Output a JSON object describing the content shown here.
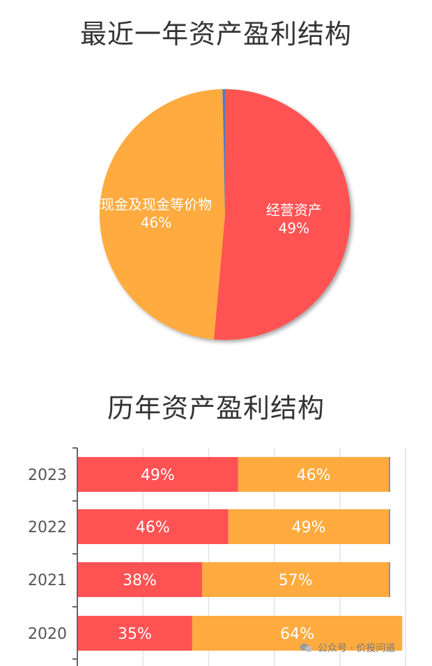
{
  "colors": {
    "operating": "#FF5253",
    "cash": "#FFAB40",
    "other": "#4A7BD0",
    "axis": "#666666",
    "grid": "#E0E0F0"
  },
  "titles": {
    "pie": "最近一年资产盈利结构",
    "bar": "历年资产盈利结构"
  },
  "chart_data": [
    {
      "type": "pie",
      "slices": [
        {
          "name": "经营资产",
          "value": 49,
          "label": "49%",
          "color": "#FF5253"
        },
        {
          "name": "现金及现金等价物",
          "value": 46,
          "label": "46%",
          "color": "#FFAB40"
        },
        {
          "name": "",
          "value": 0.3,
          "label": "",
          "color": "#4A7BD0"
        }
      ]
    },
    {
      "type": "bar",
      "orientation": "horizontal",
      "stacked": true,
      "categories": [
        "2023",
        "2022",
        "2021",
        "2020"
      ],
      "series": [
        {
          "name": "经营资产",
          "values": [
            49,
            46,
            38,
            35
          ],
          "labels": [
            "49%",
            "46%",
            "38%",
            "35%"
          ],
          "color": "#FF5253"
        },
        {
          "name": "现金及现金等价物",
          "values": [
            46,
            49,
            57,
            64
          ],
          "labels": [
            "46%",
            "49%",
            "57%",
            "64%"
          ],
          "color": "#FFAB40"
        },
        {
          "name": "",
          "values": [
            0.3,
            0.3,
            0.3,
            0
          ],
          "labels": [
            "",
            "",
            "",
            ""
          ],
          "color": "#4A7BD0"
        }
      ],
      "xlim": [
        0,
        100
      ],
      "grid": true
    }
  ],
  "watermark": "公众号 · 价投问道"
}
